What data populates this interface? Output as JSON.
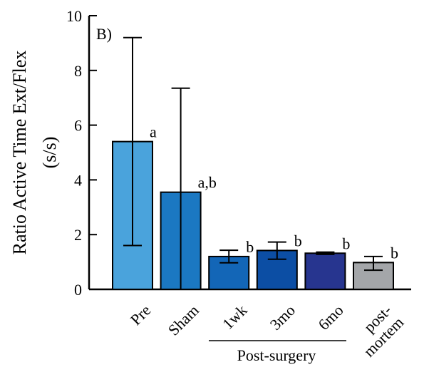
{
  "chart_data": {
    "type": "bar",
    "panel_label": "B)",
    "ylabel_line1": "Ratio Active Time Ext/Flex",
    "ylabel_line2": "(s/s)",
    "ylim": [
      0,
      10
    ],
    "yticks": [
      0,
      2,
      4,
      6,
      8,
      10
    ],
    "grid": false,
    "categories": [
      {
        "label": [
          "Pre"
        ],
        "value": 5.4,
        "err_low": 1.6,
        "err_high": 9.2,
        "annotation": "a",
        "color": "#4aa3dc"
      },
      {
        "label": [
          "Sham"
        ],
        "value": 3.55,
        "err_low": 0,
        "err_high": 7.35,
        "annotation": "a,b",
        "color": "#1b78c2"
      },
      {
        "label": [
          "1wk"
        ],
        "value": 1.2,
        "err_low": 0.97,
        "err_high": 1.43,
        "annotation": "b",
        "color": "#1366b7"
      },
      {
        "label": [
          "3mo"
        ],
        "value": 1.42,
        "err_low": 1.1,
        "err_high": 1.73,
        "annotation": "b",
        "color": "#0c4ea4"
      },
      {
        "label": [
          "6mo"
        ],
        "value": 1.32,
        "err_low": 1.28,
        "err_high": 1.36,
        "annotation": "b",
        "color": "#27358f"
      },
      {
        "label": [
          "post-",
          "mortem"
        ],
        "value": 0.98,
        "err_low": 0.7,
        "err_high": 1.2,
        "annotation": "b",
        "color": "#a4a6a9"
      }
    ],
    "group_label": "Post-surgery"
  }
}
